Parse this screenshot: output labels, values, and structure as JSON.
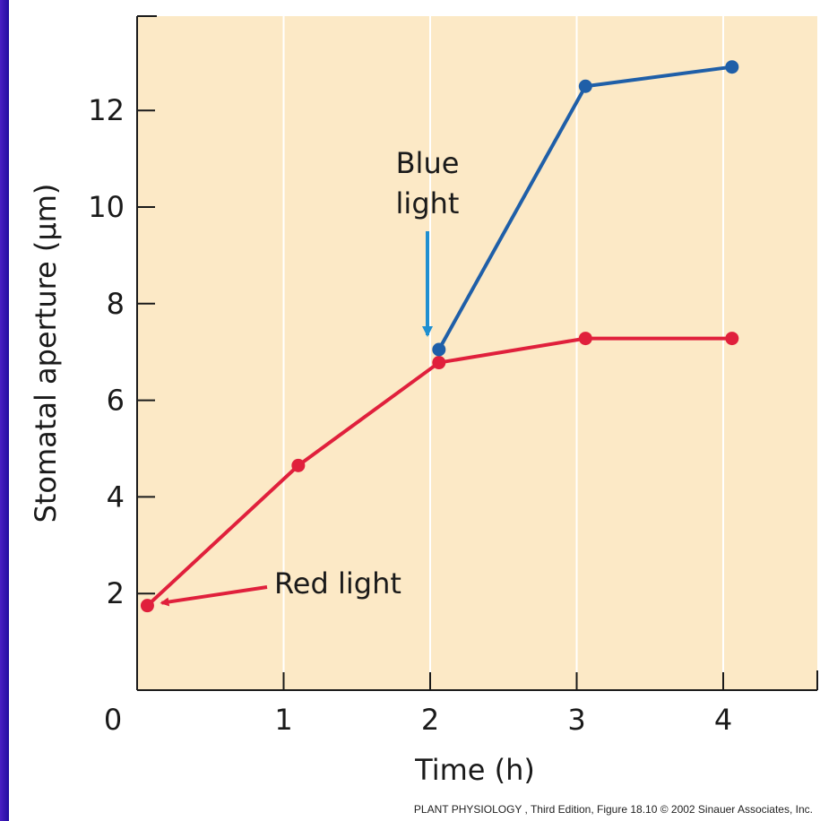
{
  "chart_data": {
    "type": "line",
    "xlabel": "Time (h)",
    "ylabel": "Stomatal aperture (μm)",
    "xlim": [
      0,
      4.65
    ],
    "ylim": [
      0,
      14
    ],
    "x_ticks": [
      0,
      1,
      2,
      3,
      4
    ],
    "y_ticks": [
      2,
      4,
      6,
      8,
      10,
      12
    ],
    "grid": "vertical",
    "series": [
      {
        "color": "#e0203c",
        "points": [
          [
            0.07,
            1.75
          ],
          [
            1.1,
            4.65
          ],
          [
            2.06,
            6.78
          ],
          [
            3.06,
            7.28
          ],
          [
            4.06,
            7.28
          ]
        ]
      },
      {
        "color": "#1f5fa8",
        "points": [
          [
            2.06,
            7.05
          ],
          [
            3.06,
            12.5
          ],
          [
            4.06,
            12.9
          ]
        ]
      }
    ],
    "annotations": [
      {
        "id": "red-light",
        "lines": [
          "Red light"
        ],
        "color": "#e0203c",
        "target": [
          0.07,
          1.75
        ]
      },
      {
        "id": "blue-light",
        "lines": [
          "Blue",
          "light"
        ],
        "color": "#1f8fd0",
        "target": [
          2.06,
          7.05
        ]
      }
    ],
    "plot_bg": "#fce9c6",
    "grid_color": "#ffffff"
  },
  "credit": "PLANT PHYSIOLOGY , Third Edition, Figure 18.10 © 2002 Sinauer Associates, Inc."
}
